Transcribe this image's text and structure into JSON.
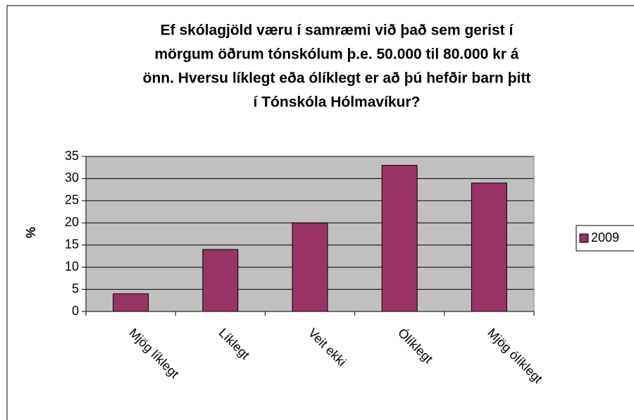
{
  "chart_data": {
    "type": "bar",
    "title": [
      "Ef skólagjöld væru í samræmi við það sem gerist í",
      "mörgum öðrum tónskólum þ.e. 50.000 til 80.000 kr á",
      "önn.  Hversu líklegt eða ólíklegt er að þú hefðir barn þitt",
      "í Tónskóla Hólmavíkur?"
    ],
    "y_label": "%",
    "categories": [
      "Mjög líklegt",
      "Líklegt",
      "Veit ekki",
      "Ólíklegt",
      "Mjög ólíklegt"
    ],
    "series": [
      {
        "name": "2009",
        "color": "#993366",
        "values": [
          4,
          14,
          20,
          33,
          29
        ]
      }
    ],
    "ylim": [
      0,
      35
    ],
    "yticks": [
      0,
      5,
      10,
      15,
      20,
      25,
      30,
      35
    ],
    "grid": true,
    "legend": "right"
  }
}
